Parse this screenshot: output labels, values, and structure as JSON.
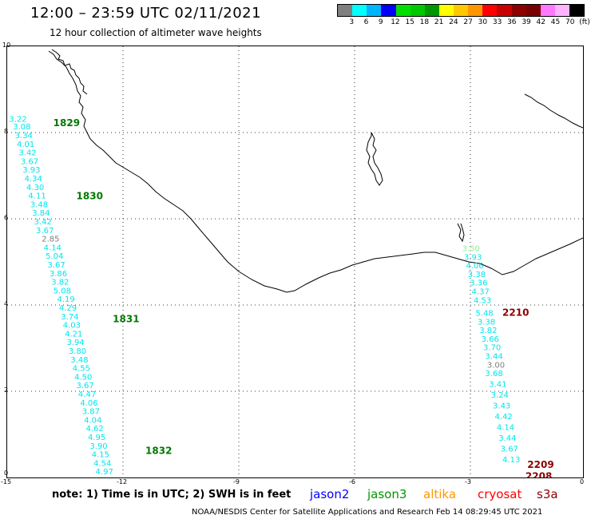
{
  "header": {
    "title": "12:00 – 23:59 UTC 02/11/2021",
    "subtitle": "12 hour collection of altimeter wave heights"
  },
  "scale": {
    "colors": [
      "#7f7f7f",
      "#00ffff",
      "#00b4ff",
      "#0000ff",
      "#00e000",
      "#00c800",
      "#009600",
      "#ffff00",
      "#ffc800",
      "#ff9600",
      "#ff0000",
      "#c80000",
      "#8c0000",
      "#780000",
      "#ff78ff",
      "#ffb4ff",
      "#000000"
    ],
    "labels": [
      "3",
      "6",
      "9",
      "12",
      "15",
      "18",
      "21",
      "24",
      "27",
      "30",
      "33",
      "36",
      "39",
      "42",
      "45",
      "70",
      "(ft)"
    ]
  },
  "axes": {
    "y_ticks": [
      "10",
      "8",
      "6",
      "4",
      "2",
      "0"
    ],
    "x_ticks": [
      "-15",
      "-12",
      "-9",
      "-6",
      "-3",
      "0"
    ]
  },
  "tracks": {
    "west": {
      "times": [
        {
          "label": "1829",
          "lon": -13.8,
          "lat": 8.15
        },
        {
          "label": "1830",
          "lon": -13.2,
          "lat": 6.45
        },
        {
          "label": "1831",
          "lon": -12.25,
          "lat": 3.6
        },
        {
          "label": "1832",
          "lon": -11.4,
          "lat": 0.55
        }
      ],
      "values": [
        {
          "v": "3.22",
          "lon": -14.95,
          "lat": 8.25,
          "c": "#00e5ee"
        },
        {
          "v": "3.08",
          "lon": -14.85,
          "lat": 8.07,
          "c": "#00e5ee"
        },
        {
          "v": "3.34",
          "lon": -14.8,
          "lat": 7.87,
          "c": "#00e5ee"
        },
        {
          "v": "4.01",
          "lon": -14.75,
          "lat": 7.67,
          "c": "#00e5ee"
        },
        {
          "v": "3.42",
          "lon": -14.7,
          "lat": 7.47,
          "c": "#00e5ee"
        },
        {
          "v": "3.67",
          "lon": -14.65,
          "lat": 7.27,
          "c": "#00e5ee"
        },
        {
          "v": "3.93",
          "lon": -14.6,
          "lat": 7.07,
          "c": "#00e5ee"
        },
        {
          "v": "4.34",
          "lon": -14.55,
          "lat": 6.87,
          "c": "#00e5ee"
        },
        {
          "v": "4.30",
          "lon": -14.5,
          "lat": 6.67,
          "c": "#00e5ee"
        },
        {
          "v": "4.11",
          "lon": -14.45,
          "lat": 6.47,
          "c": "#00e5ee"
        },
        {
          "v": "3.48",
          "lon": -14.4,
          "lat": 6.27,
          "c": "#00e5ee"
        },
        {
          "v": "3.84",
          "lon": -14.35,
          "lat": 6.07,
          "c": "#00e5ee"
        },
        {
          "v": "3.42",
          "lon": -14.3,
          "lat": 5.87,
          "c": "#00e5ee"
        },
        {
          "v": "3.67",
          "lon": -14.25,
          "lat": 5.67,
          "c": "#00e5ee"
        },
        {
          "v": "2.85",
          "lon": -14.1,
          "lat": 5.47,
          "c": "#7f7f7f"
        },
        {
          "v": "4.14",
          "lon": -14.05,
          "lat": 5.27,
          "c": "#00e5ee"
        },
        {
          "v": "5.04",
          "lon": -14.0,
          "lat": 5.07,
          "c": "#00e5ee"
        },
        {
          "v": "3.67",
          "lon": -13.95,
          "lat": 4.87,
          "c": "#00e5ee"
        },
        {
          "v": "3.86",
          "lon": -13.9,
          "lat": 4.67,
          "c": "#00e5ee"
        },
        {
          "v": "3.82",
          "lon": -13.85,
          "lat": 4.47,
          "c": "#00e5ee"
        },
        {
          "v": "5.08",
          "lon": -13.8,
          "lat": 4.27,
          "c": "#00e5ee"
        },
        {
          "v": "4.19",
          "lon": -13.7,
          "lat": 4.07,
          "c": "#00e5ee"
        },
        {
          "v": "4.29",
          "lon": -13.65,
          "lat": 3.87,
          "c": "#00e5ee"
        },
        {
          "v": "3.74",
          "lon": -13.6,
          "lat": 3.67,
          "c": "#00e5ee"
        },
        {
          "v": "4.03",
          "lon": -13.55,
          "lat": 3.47,
          "c": "#00e5ee"
        },
        {
          "v": "4.21",
          "lon": -13.5,
          "lat": 3.27,
          "c": "#00e5ee"
        },
        {
          "v": "3.94",
          "lon": -13.45,
          "lat": 3.07,
          "c": "#00e5ee"
        },
        {
          "v": "3.80",
          "lon": -13.4,
          "lat": 2.87,
          "c": "#00e5ee"
        },
        {
          "v": "3.48",
          "lon": -13.35,
          "lat": 2.67,
          "c": "#00e5ee"
        },
        {
          "v": "4.55",
          "lon": -13.3,
          "lat": 2.47,
          "c": "#00e5ee"
        },
        {
          "v": "4.50",
          "lon": -13.25,
          "lat": 2.27,
          "c": "#00e5ee"
        },
        {
          "v": "3.67",
          "lon": -13.2,
          "lat": 2.07,
          "c": "#00e5ee"
        },
        {
          "v": "4.47",
          "lon": -13.15,
          "lat": 1.87,
          "c": "#00e5ee"
        },
        {
          "v": "4.06",
          "lon": -13.1,
          "lat": 1.67,
          "c": "#00e5ee"
        },
        {
          "v": "3.87",
          "lon": -13.05,
          "lat": 1.47,
          "c": "#00e5ee"
        },
        {
          "v": "4.04",
          "lon": -13.0,
          "lat": 1.27,
          "c": "#00e5ee"
        },
        {
          "v": "4.62",
          "lon": -12.95,
          "lat": 1.07,
          "c": "#00e5ee"
        },
        {
          "v": "4.95",
          "lon": -12.9,
          "lat": 0.87,
          "c": "#00e5ee"
        },
        {
          "v": "3.90",
          "lon": -12.85,
          "lat": 0.67,
          "c": "#00e5ee"
        },
        {
          "v": "4.15",
          "lon": -12.8,
          "lat": 0.47,
          "c": "#00e5ee"
        },
        {
          "v": "4.54",
          "lon": -12.75,
          "lat": 0.27,
          "c": "#00e5ee"
        },
        {
          "v": "4.97",
          "lon": -12.7,
          "lat": 0.07,
          "c": "#00e5ee"
        }
      ]
    },
    "east": {
      "times": [
        {
          "label": "2210",
          "lon": -2.1,
          "lat": 3.75,
          "c": "#8c0000"
        },
        {
          "label": "2209",
          "lon": -1.45,
          "lat": 0.22,
          "c": "#8c0000"
        },
        {
          "label": "2208",
          "lon": -1.5,
          "lat": -0.05,
          "c": "#8c0000"
        }
      ],
      "values": [
        {
          "v": "3.50",
          "lon": -3.15,
          "lat": 5.25,
          "c": "#90ee90"
        },
        {
          "v": "3.93",
          "lon": -3.1,
          "lat": 5.05,
          "c": "#00e5ee"
        },
        {
          "v": "4.06",
          "lon": -3.05,
          "lat": 4.85,
          "c": "#00e5ee"
        },
        {
          "v": "3.38",
          "lon": -3.0,
          "lat": 4.65,
          "c": "#00e5ee"
        },
        {
          "v": "3.36",
          "lon": -2.95,
          "lat": 4.45,
          "c": "#00e5ee"
        },
        {
          "v": "4.37",
          "lon": -2.9,
          "lat": 4.25,
          "c": "#00e5ee"
        },
        {
          "v": "4.53",
          "lon": -2.85,
          "lat": 4.05,
          "c": "#00e5ee"
        },
        {
          "v": "5.48",
          "lon": -2.8,
          "lat": 3.75,
          "c": "#00e5ee"
        },
        {
          "v": "3.38",
          "lon": -2.75,
          "lat": 3.55,
          "c": "#00e5ee"
        },
        {
          "v": "3.82",
          "lon": -2.7,
          "lat": 3.35,
          "c": "#00e5ee"
        },
        {
          "v": "3.66",
          "lon": -2.65,
          "lat": 3.15,
          "c": "#00e5ee"
        },
        {
          "v": "3.70",
          "lon": -2.6,
          "lat": 2.95,
          "c": "#00e5ee"
        },
        {
          "v": "3.44",
          "lon": -2.55,
          "lat": 2.75,
          "c": "#00e5ee"
        },
        {
          "v": "3.00",
          "lon": -2.5,
          "lat": 2.55,
          "c": "#7f7f7f"
        },
        {
          "v": "3.68",
          "lon": -2.55,
          "lat": 2.35,
          "c": "#00e5ee"
        },
        {
          "v": "3.41",
          "lon": -2.45,
          "lat": 2.1,
          "c": "#00e5ee"
        },
        {
          "v": "3.24",
          "lon": -2.4,
          "lat": 1.85,
          "c": "#00e5ee"
        },
        {
          "v": "3.43",
          "lon": -2.35,
          "lat": 1.6,
          "c": "#00e5ee"
        },
        {
          "v": "4.42",
          "lon": -2.3,
          "lat": 1.35,
          "c": "#00e5ee"
        },
        {
          "v": "4.14",
          "lon": -2.25,
          "lat": 1.1,
          "c": "#00e5ee"
        },
        {
          "v": "3.44",
          "lon": -2.2,
          "lat": 0.85,
          "c": "#00e5ee"
        },
        {
          "v": "3.67",
          "lon": -2.15,
          "lat": 0.6,
          "c": "#00e5ee"
        },
        {
          "v": "4.13",
          "lon": -2.1,
          "lat": 0.35,
          "c": "#00e5ee"
        }
      ]
    }
  },
  "footer": {
    "note": "note: 1) Time is in UTC; 2) SWH is in feet",
    "legend": [
      {
        "label": "jason2",
        "color": "#0000ff"
      },
      {
        "label": "jason3",
        "color": "#009600"
      },
      {
        "label": "altika",
        "color": "#ff9600"
      },
      {
        "label": "cryosat",
        "color": "#ff0000"
      },
      {
        "label": "s3a",
        "color": "#8c0000"
      }
    ],
    "credit": "NOAA/NESDIS Center for Satellite Applications and Research   Feb 14 08:29:45 UTC 2021"
  }
}
